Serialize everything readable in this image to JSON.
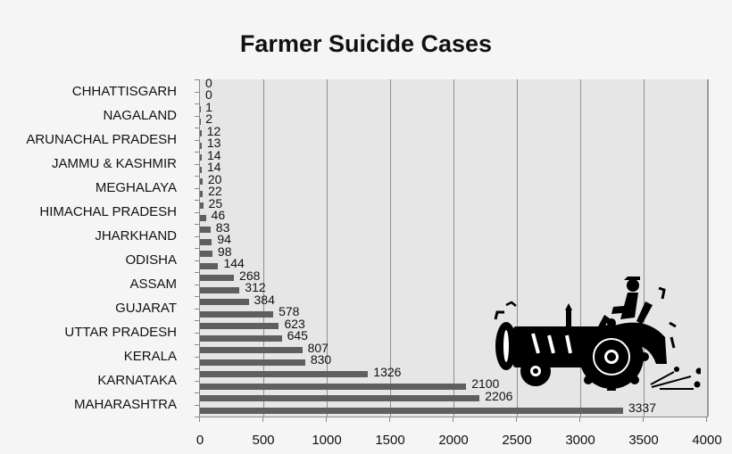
{
  "chart_data": {
    "type": "bar",
    "orientation": "horizontal",
    "title": "Farmer Suicide Cases",
    "xlabel": "",
    "ylabel": "",
    "xlim": [
      0,
      4000
    ],
    "x_ticks": [
      "0",
      "500",
      "1000",
      "1500",
      "2000",
      "2500",
      "3000",
      "3500",
      "4000"
    ],
    "grid": true,
    "legend": null,
    "categories_top_to_bottom_labeled": [
      "CHHATTISGARH",
      "NAGALAND",
      "ARUNACHAL PRADESH",
      "JAMMU & KASHMIR",
      "MEGHALAYA",
      "HIMACHAL PRADESH",
      "JHARKHAND",
      "ODISHA",
      "ASSAM",
      "GUJARAT",
      "UTTAR PRADESH",
      "KERALA",
      "KARNATAKA",
      "MAHARASHTRA"
    ],
    "values_top_to_bottom": [
      0,
      0,
      1,
      2,
      12,
      13,
      14,
      14,
      20,
      22,
      25,
      46,
      83,
      94,
      98,
      144,
      268,
      312,
      384,
      578,
      623,
      645,
      807,
      830,
      1326,
      2100,
      2206,
      3337
    ],
    "note": "28 bars; only every other category label is shown on the axis"
  },
  "chart": {
    "title": "Farmer Suicide Cases",
    "x_ticks": [
      "0",
      "500",
      "1000",
      "1500",
      "2000",
      "2500",
      "3000",
      "3500",
      "4000"
    ],
    "category_labels": [
      {
        "label": "CHHATTISGARH",
        "index": 1
      },
      {
        "label": "NAGALAND",
        "index": 3
      },
      {
        "label": "ARUNACHAL PRADESH",
        "index": 5
      },
      {
        "label": "JAMMU & KASHMIR",
        "index": 7
      },
      {
        "label": "MEGHALAYA",
        "index": 9
      },
      {
        "label": "HIMACHAL PRADESH",
        "index": 11
      },
      {
        "label": "JHARKHAND",
        "index": 13
      },
      {
        "label": "ODISHA",
        "index": 15
      },
      {
        "label": "ASSAM",
        "index": 17
      },
      {
        "label": "GUJARAT",
        "index": 19
      },
      {
        "label": "UTTAR PRADESH",
        "index": 21
      },
      {
        "label": "KERALA",
        "index": 23
      },
      {
        "label": "KARNATAKA",
        "index": 25
      },
      {
        "label": "MAHARASHTRA",
        "index": 27
      }
    ],
    "values": [
      0,
      0,
      1,
      2,
      12,
      13,
      14,
      14,
      20,
      22,
      25,
      46,
      83,
      94,
      98,
      144,
      268,
      312,
      384,
      578,
      623,
      645,
      807,
      830,
      1326,
      2100,
      2206,
      3337
    ],
    "bar_color": "#5f5f5f",
    "plot_bg": "#e6e6e6",
    "page_bg": "#f5f5f5",
    "decoration": "tractor-clipart"
  }
}
